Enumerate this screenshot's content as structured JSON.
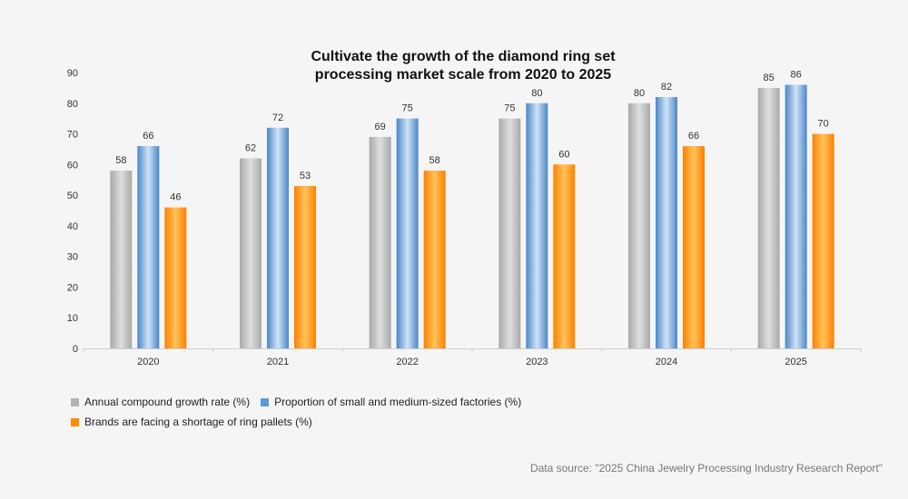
{
  "chart_data": {
    "type": "bar",
    "title_lines": [
      "Cultivate the growth of the diamond ring set",
      "processing market scale from 2020 to 2025"
    ],
    "categories": [
      "2020",
      "2021",
      "2022",
      "2023",
      "2024",
      "2025"
    ],
    "series": [
      {
        "name": "Annual compound growth rate (%)",
        "values": [
          58,
          62,
          69,
          75,
          80,
          85
        ],
        "color": "#b3b3b3"
      },
      {
        "name": "Proportion of small and medium-sized factories (%)",
        "values": [
          66,
          72,
          75,
          80,
          82,
          86
        ],
        "color": "#5b9bd5"
      },
      {
        "name": "Brands are facing a shortage of ring pallets (%)",
        "values": [
          46,
          53,
          58,
          60,
          66,
          70
        ],
        "color": "#ff8c00"
      }
    ],
    "ylim": [
      0,
      90
    ],
    "yticks": [
      0,
      10,
      20,
      30,
      40,
      50,
      60,
      70,
      80,
      90
    ],
    "data_labels": true,
    "grid": false,
    "legend_position": "bottom-left",
    "source": "Data source: \"2025 China Jewelry Processing Industry Research Report\""
  }
}
